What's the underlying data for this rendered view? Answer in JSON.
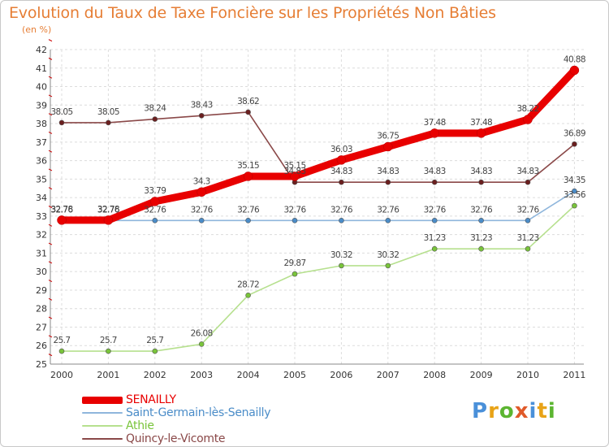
{
  "title": "Evolution du Taux de Taxe Foncière sur les Propriétés Non Bâties",
  "subtitle": "(en %)",
  "logo": {
    "text": "Proxiti",
    "letters": [
      {
        "ch": "P",
        "color": "#4a90d9"
      },
      {
        "ch": "r",
        "color": "#e8a317"
      },
      {
        "ch": "o",
        "color": "#5cb531"
      },
      {
        "ch": "x",
        "color": "#e05a2a"
      },
      {
        "ch": "i",
        "color": "#4a90d9"
      },
      {
        "ch": "t",
        "color": "#e8a317"
      },
      {
        "ch": "i",
        "color": "#5cb531"
      }
    ]
  },
  "chart_data": {
    "type": "line",
    "x": [
      "2000",
      "2001",
      "2002",
      "2003",
      "2004",
      "2005",
      "2006",
      "2007",
      "2008",
      "2009",
      "2010",
      "2011"
    ],
    "ylim": [
      25,
      42
    ],
    "yticks": [
      25,
      26,
      27,
      28,
      29,
      30,
      31,
      32,
      33,
      34,
      35,
      36,
      37,
      38,
      39,
      40,
      41,
      42
    ],
    "grid": true,
    "legend_position": "bottom-left",
    "series": [
      {
        "name": "Quincy-le-Vicomte",
        "color": "#6b1f1f",
        "line_color": "#8a4848",
        "values": [
          38.05,
          38.05,
          38.24,
          38.43,
          38.62,
          34.83,
          34.83,
          34.83,
          34.83,
          34.83,
          34.83,
          36.89
        ],
        "labels": [
          "38.05",
          "38.05",
          "38.24",
          "38.43",
          "38.62",
          "34.83",
          "34.83",
          "34.83",
          "34.83",
          "34.83",
          "34.83",
          "36.89"
        ]
      },
      {
        "name": "Athie",
        "color": "#79c43a",
        "line_color": "#b6e08e",
        "values": [
          25.7,
          25.7,
          25.7,
          26.08,
          28.72,
          29.87,
          30.32,
          30.32,
          31.23,
          31.23,
          31.23,
          33.56
        ],
        "labels": [
          "25.7",
          "25.7",
          "25.7",
          "26.08",
          "28.72",
          "29.87",
          "30.32",
          "30.32",
          "31.23",
          "31.23",
          "31.23",
          "33.56"
        ]
      },
      {
        "name": "Saint-Germain-lès-Senailly",
        "color": "#4a8cc8",
        "line_color": "#8fb6dc",
        "values": [
          32.76,
          32.76,
          32.76,
          32.76,
          32.76,
          32.76,
          32.76,
          32.76,
          32.76,
          32.76,
          32.76,
          34.35
        ],
        "labels": [
          "32.76",
          "32.76",
          "32.76",
          "32.76",
          "32.76",
          "32.76",
          "32.76",
          "32.76",
          "32.76",
          "32.76",
          "32.76",
          "34.35"
        ]
      },
      {
        "name": "SENAILLY",
        "color": "#e80000",
        "line_color": "#e80000",
        "values": [
          32.78,
          32.78,
          33.79,
          34.3,
          35.15,
          35.15,
          36.03,
          36.75,
          37.48,
          37.48,
          38.22,
          40.88
        ],
        "labels": [
          "32.78",
          "32.78",
          "33.79",
          "34.3",
          "35.15",
          "35.15",
          "36.03",
          "36.75",
          "37.48",
          "37.48",
          "38.22",
          "40.88"
        ]
      }
    ],
    "legend": [
      {
        "name": "SENAILLY",
        "color": "#e80000"
      },
      {
        "name": "Saint-Germain-lès-Senailly",
        "color": "#8fb6dc"
      },
      {
        "name": "Athie",
        "color": "#b6e08e"
      },
      {
        "name": "Quincy-le-Vicomte",
        "color": "#8a4848"
      }
    ]
  }
}
